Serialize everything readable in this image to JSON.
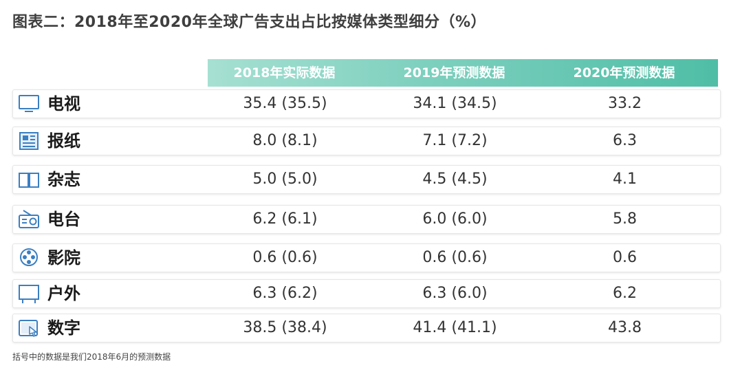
{
  "title": "图表二：2018年至2020年全球广告支出占比按媒体类型细分（%）",
  "footnote": "括号中的数据是我们2018年6月的预测数据",
  "colors": {
    "header_start": "#a6e0d2",
    "header_end": "#4fbea6",
    "icon": "#3a7fc1"
  },
  "chart_data": {
    "type": "table",
    "title": "图表二：2018年至2020年全球广告支出占比按媒体类型细分（%）",
    "columns": [
      "2018年实际数据",
      "2019年预测数据",
      "2020年预测数据"
    ],
    "rows": [
      {
        "label": "电视",
        "icon": "tv-icon",
        "cells": [
          "35.4 (35.5)",
          "34.1 (34.5)",
          "33.2"
        ]
      },
      {
        "label": "报纸",
        "icon": "newspaper-icon",
        "cells": [
          "8.0 (8.1)",
          "7.1 (7.2)",
          "6.3"
        ]
      },
      {
        "label": "杂志",
        "icon": "magazine-icon",
        "cells": [
          "5.0 (5.0)",
          "4.5 (4.5)",
          "4.1"
        ]
      },
      {
        "label": "电台",
        "icon": "radio-icon",
        "cells": [
          "6.2 (6.1)",
          "6.0 (6.0)",
          "5.8"
        ]
      },
      {
        "label": "影院",
        "icon": "cinema-reel-icon",
        "cells": [
          "0.6 (0.6)",
          "0.6 (0.6)",
          "0.6"
        ]
      },
      {
        "label": "户外",
        "icon": "billboard-icon",
        "cells": [
          "6.3 (6.2)",
          "6.3 (6.0)",
          "6.2"
        ]
      },
      {
        "label": "数字",
        "icon": "tablet-touch-icon",
        "cells": [
          "38.5 (38.4)",
          "41.4 (41.1)",
          "43.8"
        ]
      }
    ]
  }
}
